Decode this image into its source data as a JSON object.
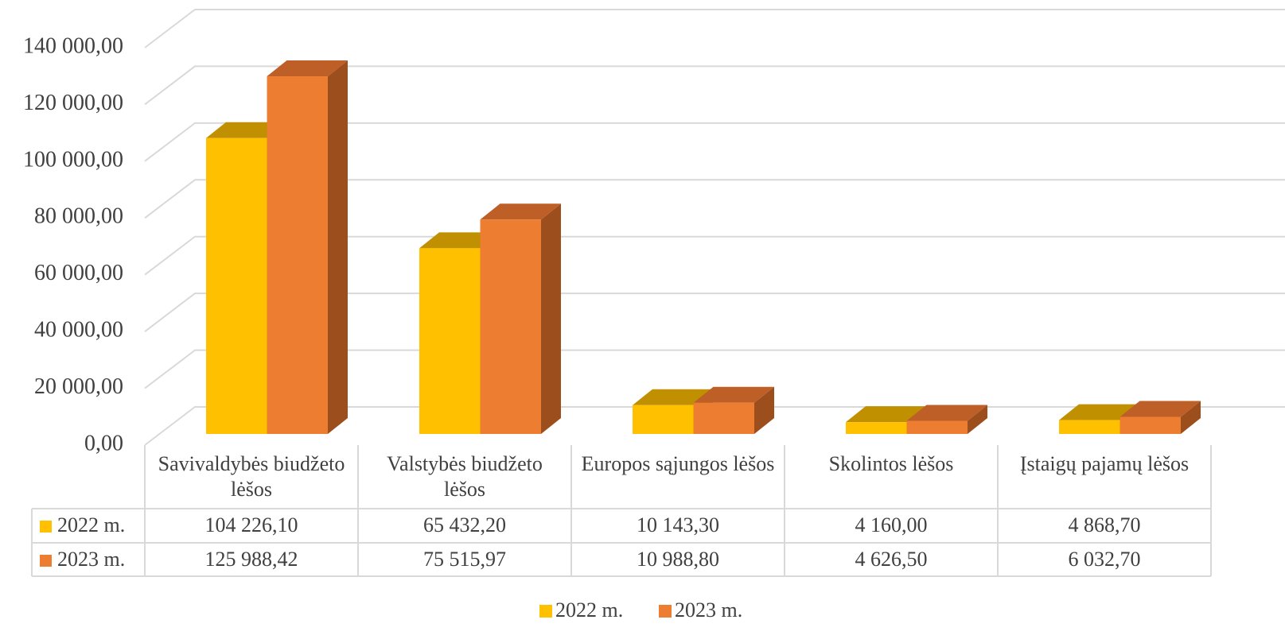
{
  "chart_data": {
    "type": "bar3d",
    "categories": [
      "Savivaldybės biudžeto lėšos",
      "Valstybės biudžeto lėšos",
      "Europos sąjungos lėšos",
      "Skolintos lėšos",
      "Įstaigų pajamų lėšos"
    ],
    "series": [
      {
        "name": "2022 m.",
        "color": "#FFC000",
        "top_color": "#C09000",
        "side_color": "#A07800",
        "values": [
          104226.1,
          65432.2,
          10143.3,
          4160.0,
          4868.7
        ],
        "value_labels": [
          "104 226,10",
          "65 432,20",
          "10 143,30",
          "4 160,00",
          "4 868,70"
        ]
      },
      {
        "name": "2023 m.",
        "color": "#ED7D31",
        "top_color": "#BE5F27",
        "side_color": "#9C4E1D",
        "values": [
          125988.42,
          75515.97,
          10988.8,
          4626.5,
          6032.7
        ],
        "value_labels": [
          "125 988,42",
          "75 515,97",
          "10 988,80",
          "4 626,50",
          "6 032,70"
        ]
      }
    ],
    "ylim": [
      0,
      140000
    ],
    "yticks": [
      {
        "value": 0,
        "label": "0,00"
      },
      {
        "value": 20000,
        "label": "20 000,00"
      },
      {
        "value": 40000,
        "label": "40 000,00"
      },
      {
        "value": 60000,
        "label": "60 000,00"
      },
      {
        "value": 80000,
        "label": "80 000,00"
      },
      {
        "value": 100000,
        "label": "100 000,00"
      },
      {
        "value": 120000,
        "label": "120 000,00"
      },
      {
        "value": 140000,
        "label": "140 000,00"
      }
    ],
    "grid": true,
    "legend": "bottom"
  }
}
